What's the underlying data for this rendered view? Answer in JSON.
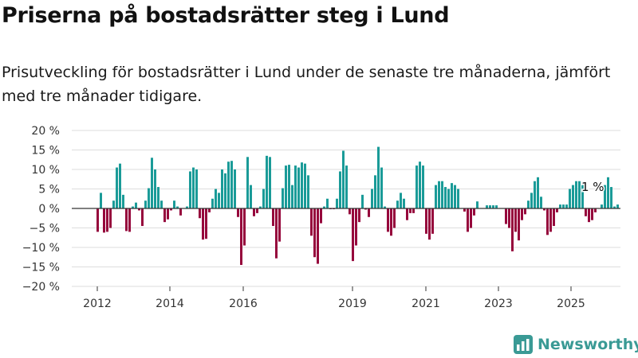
{
  "title": "Priserna på bostadsrätter steg i Lund",
  "subtitle": "Prisutveckling för bostadsrätter i Lund under de senaste tre månaderna, jämfört med tre månader tidigare.",
  "brand": "Newsworthy",
  "colors": {
    "positive": "#1a9b98",
    "negative": "#96073c",
    "grid": "#dddddd",
    "axis": "#333333",
    "logo": "#3a9a95"
  },
  "chart_data": {
    "type": "bar",
    "x_tick_labels": [
      "2012",
      "2014",
      "2016",
      "2019",
      "2021",
      "2023",
      "2025"
    ],
    "y_tick_labels": [
      "20 %",
      "15 %",
      "10 %",
      "5 %",
      "0 %",
      "−5 %",
      "−10 %",
      "−15 %",
      "−20 %"
    ],
    "ylim": [
      -20,
      20
    ],
    "grid": true,
    "annotation": "1 %",
    "series": [
      {
        "values": [
          -6,
          4,
          -6.2,
          -6,
          -5,
          2,
          10.5,
          11.5,
          3.5,
          -5.8,
          -6,
          0.5,
          1.5,
          -0.5,
          -4.5,
          2,
          5.2,
          13,
          10,
          5.5,
          2,
          -3.5,
          -2.8,
          -0.5,
          2,
          0.5,
          -1.8,
          0,
          0.5,
          9.5,
          10.5,
          10,
          -2.5,
          -8,
          -7.8,
          -1,
          2.5,
          5,
          4,
          10,
          9,
          12,
          12.2,
          10,
          -2.2,
          -14.5,
          -9.5,
          13.2,
          6,
          -2,
          -1.2,
          0.5,
          5,
          13.5,
          13.2,
          -4.5,
          -12.8,
          -8.5,
          5.2,
          11,
          11.2,
          6,
          11,
          10.5,
          11.8,
          11.5,
          8.5,
          -7,
          -12.5,
          -14.2,
          -3.8,
          0.5,
          2.5,
          -0.2,
          -0.2,
          2.5,
          9.5,
          14.8,
          11,
          -1.5,
          -13.5,
          -9.5,
          -3.5,
          3.5,
          -0.3,
          -2.2,
          5,
          8.5,
          15.8,
          10.5,
          0.5,
          -6,
          -7,
          -5,
          2,
          4,
          2.5,
          -3,
          -1.2,
          -1.2,
          11,
          12,
          11,
          -6.5,
          -8,
          -6.5,
          6,
          7,
          7,
          5.5,
          5,
          6.5,
          6,
          5,
          0,
          -0.8,
          -6,
          -5,
          -1.8,
          1.8,
          0,
          0,
          0.8,
          0.8,
          0.8,
          0.8,
          0,
          0,
          -4,
          -5,
          -11,
          -6,
          -8.2,
          -3,
          -1.5,
          2,
          4,
          7,
          8,
          3,
          -0.5,
          -6.8,
          -6,
          -4.5,
          -1,
          1,
          1,
          1,
          5,
          6,
          7,
          7,
          6,
          -2,
          -3.5,
          -3,
          -1,
          0,
          1,
          6,
          8,
          5.5,
          0.5,
          1
        ]
      }
    ]
  }
}
